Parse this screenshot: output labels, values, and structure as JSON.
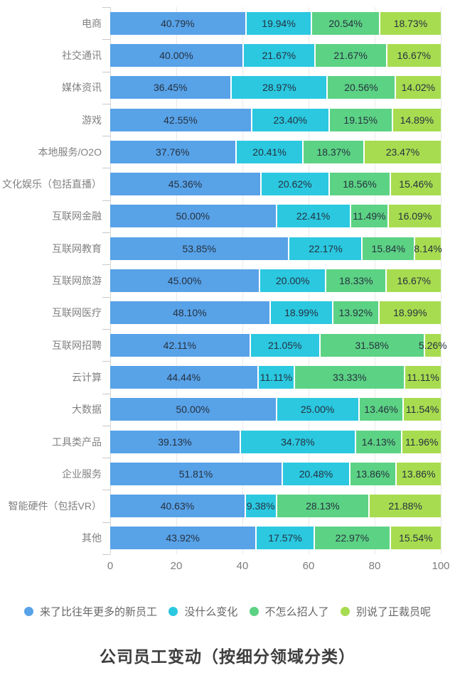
{
  "chart_data": {
    "type": "bar",
    "orientation": "horizontal",
    "stacked": true,
    "unit": "%",
    "title": "公司员工变动（按细分领域分类）",
    "categories": [
      "电商",
      "社交通讯",
      "媒体资讯",
      "游戏",
      "本地服务/O2O",
      "文化娱乐（包括直播）",
      "互联网金融",
      "互联网教育",
      "互联网旅游",
      "互联网医疗",
      "互联网招聘",
      "云计算",
      "大数据",
      "工具类产品",
      "企业服务",
      "智能硬件（包括VR）",
      "其他"
    ],
    "series": [
      {
        "name": "来了比往年更多的新员工",
        "color": "#58A2E8",
        "values": [
          40.79,
          40.0,
          36.45,
          42.55,
          37.76,
          45.36,
          50.0,
          53.85,
          45.0,
          48.1,
          42.11,
          44.44,
          50.0,
          39.13,
          51.81,
          40.63,
          43.92
        ]
      },
      {
        "name": "没什么变化",
        "color": "#2BC8E0",
        "values": [
          19.94,
          21.67,
          28.97,
          23.4,
          20.41,
          20.62,
          22.41,
          22.17,
          20.0,
          18.99,
          21.05,
          11.11,
          25.0,
          34.78,
          20.48,
          9.38,
          17.57
        ]
      },
      {
        "name": "不怎么招人了",
        "color": "#5CD284",
        "values": [
          20.54,
          21.67,
          20.56,
          19.15,
          18.37,
          18.56,
          11.49,
          15.84,
          18.33,
          13.92,
          31.58,
          33.33,
          13.46,
          14.13,
          13.86,
          28.13,
          22.97
        ]
      },
      {
        "name": "别说了正裁员呢",
        "color": "#A8DC50",
        "values": [
          18.73,
          16.67,
          14.02,
          14.89,
          23.47,
          15.46,
          16.09,
          8.14,
          16.67,
          18.99,
          5.26,
          11.11,
          11.54,
          11.96,
          13.86,
          21.88,
          15.54
        ]
      }
    ],
    "xlim": [
      0,
      100
    ],
    "x_ticks": [
      0,
      20,
      40,
      60,
      80,
      100
    ],
    "grid": true,
    "legend_position": "bottom",
    "value_label_format": "0.00%"
  },
  "colors": {
    "background": "#ffffff",
    "gridline": "#e9e9e9",
    "axis_line": "#d6d6d6",
    "category_label": "#818181",
    "value_label": "#25313f",
    "tick_label": "#7c7c7c",
    "legend_label": "#666666",
    "title": "#3e3e3e"
  }
}
